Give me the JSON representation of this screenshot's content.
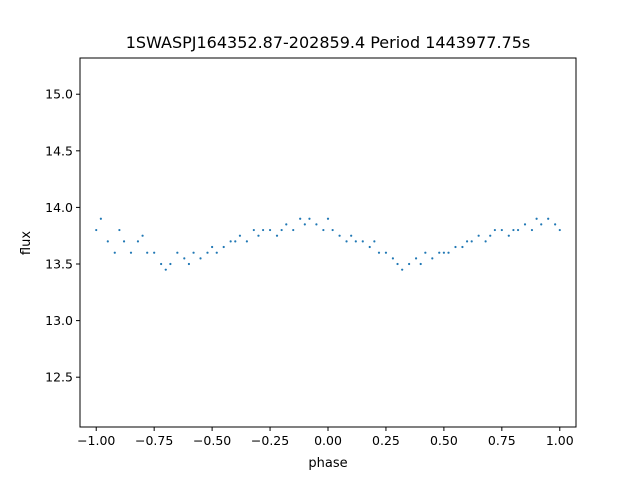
{
  "chart_data": {
    "type": "scatter",
    "title": "1SWASPJ164352.87-202859.4 Period 1443977.75s",
    "xlabel": "phase",
    "ylabel": "flux",
    "xlim": [
      -1.07,
      1.07
    ],
    "ylim": [
      12.06,
      15.32
    ],
    "xticks": [
      -1.0,
      -0.75,
      -0.5,
      -0.25,
      0.0,
      0.25,
      0.5,
      0.75,
      1.0
    ],
    "xtick_labels": [
      "−1.00",
      "−0.75",
      "−0.50",
      "−0.25",
      "0.00",
      "0.25",
      "0.50",
      "0.75",
      "1.00"
    ],
    "yticks": [
      12.5,
      13.0,
      13.5,
      14.0,
      14.5,
      15.0
    ],
    "ytick_labels": [
      "12.5",
      "13.0",
      "13.5",
      "14.0",
      "14.5",
      "15.0"
    ],
    "grid": false,
    "legend": "none",
    "marker_color": "#1f77b4",
    "series": [
      {
        "x": [
          -1.0,
          -0.98,
          -0.95,
          -0.92,
          -0.9,
          -0.88,
          -0.85,
          -0.82,
          -0.8,
          -0.78,
          -0.75,
          -0.72,
          -0.7,
          -0.68,
          -0.65,
          -0.62,
          -0.6,
          -0.58,
          -0.55,
          -0.52,
          -0.5,
          -0.48,
          -0.45,
          -0.42,
          -0.4,
          -0.38,
          -0.35,
          -0.32,
          -0.3,
          -0.28,
          -0.25,
          -0.22,
          -0.2,
          -0.18,
          -0.15,
          -0.12,
          -0.1,
          -0.08,
          -0.05,
          -0.02,
          0.0,
          0.02,
          0.05,
          0.08,
          0.1,
          0.12,
          0.15,
          0.18,
          0.2,
          0.22,
          0.25,
          0.28,
          0.3,
          0.32,
          0.35,
          0.38,
          0.4,
          0.42,
          0.45,
          0.48,
          0.5,
          0.52,
          0.55,
          0.58,
          0.6,
          0.62,
          0.65,
          0.68,
          0.7,
          0.72,
          0.75,
          0.78,
          0.8,
          0.82,
          0.85,
          0.88,
          0.9,
          0.92,
          0.95,
          0.98,
          1.0
        ],
        "y": [
          13.8,
          13.9,
          13.7,
          13.6,
          13.8,
          13.7,
          13.6,
          13.7,
          13.75,
          13.6,
          13.6,
          13.5,
          13.45,
          13.5,
          13.6,
          13.55,
          13.5,
          13.6,
          13.55,
          13.6,
          13.65,
          13.6,
          13.65,
          13.7,
          13.7,
          13.75,
          13.7,
          13.8,
          13.75,
          13.8,
          13.8,
          13.75,
          13.8,
          13.85,
          13.8,
          13.9,
          13.85,
          13.9,
          13.85,
          13.8,
          13.9,
          13.8,
          13.75,
          13.7,
          13.75,
          13.7,
          13.7,
          13.65,
          13.7,
          13.6,
          13.6,
          13.55,
          13.5,
          13.45,
          13.5,
          13.55,
          13.5,
          13.6,
          13.55,
          13.6,
          13.6,
          13.6,
          13.65,
          13.65,
          13.7,
          13.7,
          13.75,
          13.7,
          13.75,
          13.8,
          13.8,
          13.75,
          13.8,
          13.8,
          13.85,
          13.8,
          13.9,
          13.85,
          13.9,
          13.85,
          13.8
        ]
      }
    ]
  }
}
